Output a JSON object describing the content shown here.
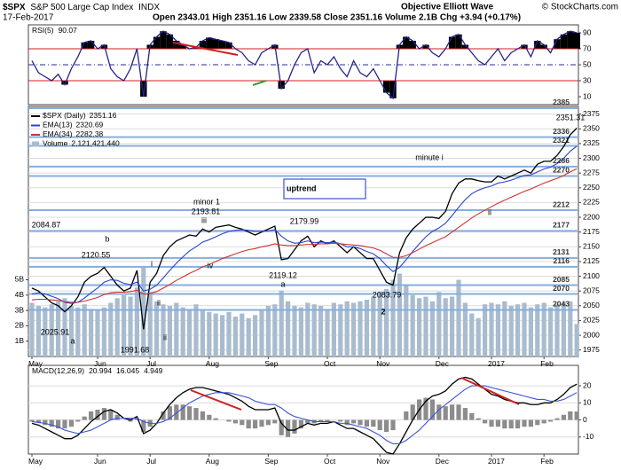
{
  "header": {
    "symbol": "$SPX",
    "name": "S&P 500 Large Cap Index",
    "exchange": "INDX",
    "date": "17-Feb-2017",
    "stats": "Open 2343.01  High 2351.16  Low 2339.58  Close 2351.16  Volume 2.1B  Chg +3.94 (+0.17%)",
    "brand": "Objective Elliott Wave",
    "source": "© StockCharts.com"
  },
  "chart_data": [
    {
      "type": "line",
      "title": "RSI(5)",
      "series": [
        {
          "color": "#23238c",
          "values": [
            55,
            40,
            35,
            30,
            38,
            25,
            45,
            60,
            78,
            80,
            70,
            75,
            45,
            35,
            30,
            45,
            70,
            10,
            75,
            85,
            92,
            88,
            80,
            75,
            70,
            72,
            80,
            84,
            82,
            80,
            78,
            70,
            65,
            55,
            50,
            65,
            70,
            75,
            20,
            30,
            50,
            65,
            70,
            40,
            55,
            50,
            60,
            45,
            35,
            55,
            40,
            35,
            45,
            30,
            15,
            8,
            75,
            85,
            80,
            70,
            75,
            65,
            60,
            70,
            85,
            88,
            75,
            65,
            55,
            50,
            60,
            70,
            55,
            65,
            70,
            75,
            60,
            80,
            75,
            65,
            82,
            88,
            92,
            90.07
          ]
        }
      ],
      "ylim": [
        0,
        100
      ],
      "yticks": [
        10,
        30,
        50,
        70,
        90
      ],
      "thresholds": [
        30,
        70
      ],
      "midline": 50,
      "fill_color": "#000000",
      "threshold_color": "#d02020",
      "grid": false
    },
    {
      "type": "line",
      "categories": [
        "May",
        null,
        null,
        null,
        null,
        null,
        null,
        null,
        null,
        null,
        "Jun",
        null,
        null,
        null,
        null,
        null,
        null,
        null,
        "Jul",
        null,
        null,
        null,
        null,
        null,
        null,
        null,
        null,
        "Aug",
        null,
        null,
        null,
        null,
        null,
        null,
        null,
        null,
        "Sep",
        null,
        null,
        null,
        null,
        null,
        null,
        null,
        null,
        "Oct",
        null,
        null,
        null,
        null,
        null,
        null,
        null,
        "Nov",
        null,
        null,
        null,
        null,
        null,
        null,
        null,
        null,
        "Dec",
        null,
        null,
        null,
        null,
        null,
        null,
        null,
        "2017",
        null,
        null,
        null,
        null,
        null,
        null,
        null,
        "Feb",
        null,
        null,
        null,
        null,
        null
      ],
      "series": [
        {
          "name": "$SPX (Daily)",
          "color": "#000000",
          "values": [
            2080,
            2075,
            2065,
            2055,
            2050,
            2040,
            2050,
            2065,
            2090,
            2100,
            2105,
            2115,
            2100,
            2085,
            2075,
            2080,
            2110,
            2010,
            2090,
            2105,
            2135,
            2150,
            2160,
            2165,
            2170,
            2168,
            2180,
            2175,
            2183,
            2185,
            2187,
            2183,
            2180,
            2175,
            2170,
            2175,
            2180,
            2185,
            2128,
            2130,
            2145,
            2160,
            2168,
            2150,
            2160,
            2155,
            2160,
            2150,
            2140,
            2150,
            2140,
            2130,
            2130,
            2110,
            2090,
            2085,
            2140,
            2165,
            2180,
            2190,
            2200,
            2200,
            2198,
            2210,
            2240,
            2258,
            2265,
            2265,
            2262,
            2260,
            2260,
            2270,
            2265,
            2270,
            2275,
            2280,
            2275,
            2290,
            2295,
            2295,
            2305,
            2320,
            2340,
            2351.16
          ]
        },
        {
          "name": "EMA(13)",
          "color": "#2a44c8",
          "values": [
            2070,
            2072,
            2070,
            2066,
            2062,
            2056,
            2054,
            2056,
            2063,
            2072,
            2080,
            2090,
            2094,
            2093,
            2088,
            2086,
            2090,
            2075,
            2078,
            2085,
            2097,
            2110,
            2122,
            2133,
            2143,
            2150,
            2158,
            2162,
            2167,
            2172,
            2176,
            2178,
            2179,
            2178,
            2176,
            2176,
            2177,
            2179,
            2168,
            2160,
            2156,
            2157,
            2160,
            2157,
            2158,
            2157,
            2158,
            2155,
            2150,
            2150,
            2147,
            2142,
            2138,
            2130,
            2118,
            2108,
            2115,
            2128,
            2142,
            2155,
            2167,
            2176,
            2182,
            2190,
            2203,
            2217,
            2230,
            2240,
            2246,
            2250,
            2253,
            2258,
            2260,
            2263,
            2267,
            2271,
            2272,
            2277,
            2282,
            2285,
            2291,
            2300,
            2312,
            2320.69
          ]
        },
        {
          "name": "EMA(34)",
          "color": "#cc3333",
          "values": [
            2060,
            2061,
            2061,
            2060,
            2059,
            2057,
            2056,
            2056,
            2058,
            2061,
            2064,
            2069,
            2072,
            2073,
            2073,
            2074,
            2076,
            2070,
            2071,
            2074,
            2080,
            2086,
            2093,
            2099,
            2105,
            2110,
            2116,
            2120,
            2125,
            2130,
            2134,
            2138,
            2142,
            2145,
            2147,
            2150,
            2152,
            2155,
            2153,
            2152,
            2152,
            2153,
            2154,
            2154,
            2155,
            2155,
            2156,
            2155,
            2154,
            2153,
            2152,
            2150,
            2148,
            2144,
            2138,
            2132,
            2132,
            2135,
            2140,
            2146,
            2152,
            2157,
            2162,
            2167,
            2175,
            2183,
            2191,
            2199,
            2206,
            2212,
            2218,
            2224,
            2229,
            2234,
            2239,
            2244,
            2248,
            2253,
            2258,
            2262,
            2266,
            2271,
            2277,
            2282.38
          ]
        },
        {
          "name": "Volume",
          "type": "bar",
          "axis": "y2",
          "color": "#a9bccf",
          "values": [
            3.5,
            3.3,
            3.2,
            3.4,
            3.6,
            3.8,
            3.3,
            3.2,
            3.4,
            3.1,
            3.0,
            3.2,
            3.5,
            3.8,
            4.0,
            3.9,
            4.5,
            5.8,
            4.2,
            3.6,
            3.4,
            3.3,
            3.5,
            3.2,
            3.1,
            3.4,
            3.0,
            2.9,
            2.8,
            2.7,
            2.9,
            2.6,
            2.8,
            2.5,
            2.7,
            3.0,
            3.3,
            3.4,
            4.3,
            3.6,
            3.3,
            3.2,
            3.5,
            3.4,
            3.3,
            3.1,
            3.5,
            3.4,
            3.6,
            3.5,
            3.6,
            3.7,
            3.9,
            4.2,
            4.4,
            5.0,
            5.4,
            4.6,
            4.0,
            3.8,
            3.9,
            3.6,
            4.2,
            3.8,
            3.9,
            5.0,
            3.5,
            2.8,
            2.5,
            3.4,
            3.5,
            3.4,
            3.6,
            3.3,
            3.4,
            3.5,
            3.2,
            3.4,
            3.5,
            3.2,
            3.4,
            3.5,
            3.6,
            2.12142144
          ],
          "value_labels": [
            null,
            null,
            null,
            null,
            null,
            null,
            null,
            null,
            null,
            null,
            null,
            null,
            null,
            null,
            null,
            null,
            null,
            null,
            null,
            null,
            null,
            null,
            null,
            null,
            null,
            null,
            null,
            null,
            null,
            null,
            null,
            null,
            null,
            null,
            null,
            null,
            null,
            null,
            null,
            null,
            null,
            null,
            null,
            null,
            null,
            null,
            null,
            null,
            null,
            null,
            null,
            null,
            null,
            null,
            null,
            null,
            null,
            null,
            null,
            null,
            null,
            null,
            null,
            null,
            null,
            null,
            null,
            null,
            null,
            null,
            null,
            null,
            null,
            null,
            null,
            null,
            null,
            null,
            null,
            null,
            null,
            null,
            null,
            "2,121,421,440"
          ]
        }
      ],
      "ylim": [
        1964,
        2388
      ],
      "yticks": [
        1975,
        2000,
        2025,
        2050,
        2075,
        2100,
        2125,
        2150,
        2175,
        2200,
        2225,
        2250,
        2275,
        2300,
        2325,
        2350,
        2375
      ],
      "y2lim": [
        0,
        16.3
      ],
      "y2ticks": [
        {
          "value": 1,
          "label": "1B"
        },
        {
          "value": 2,
          "label": "2B"
        },
        {
          "value": 3,
          "label": "3B"
        },
        {
          "value": 4,
          "label": "4B"
        },
        {
          "value": 5,
          "label": "5B"
        }
      ],
      "levels": [
        2385,
        2336,
        2321,
        2286,
        2270,
        2212,
        2177,
        2131,
        2116,
        2085,
        2070,
        2043
      ],
      "level_color": "#86aede",
      "grid": true,
      "legend": "top-left",
      "annotations": [
        "2084.87",
        "b",
        "2120.55",
        "2025.91",
        "a",
        "i",
        "ii",
        "1991.68",
        "ii",
        "minor 1",
        "iii",
        "2193.81",
        "iv",
        "b",
        "2179.99",
        "2119.12",
        "a",
        "2083.79",
        "2",
        "minute i",
        "ii",
        "2351.31",
        "uptrend"
      ]
    },
    {
      "type": "line",
      "title": "MACD(12,26,9)",
      "categories": [
        "May",
        null,
        null,
        null,
        null,
        null,
        null,
        null,
        null,
        null,
        "Jun",
        null,
        null,
        null,
        null,
        null,
        null,
        null,
        "Jul",
        null,
        null,
        null,
        null,
        null,
        null,
        null,
        null,
        "Aug",
        null,
        null,
        null,
        null,
        null,
        null,
        null,
        null,
        "Sep",
        null,
        null,
        null,
        null,
        null,
        null,
        null,
        null,
        "Oct",
        null,
        null,
        null,
        null,
        null,
        null,
        null,
        "Nov",
        null,
        null,
        null,
        null,
        null,
        null,
        null,
        null,
        "Dec",
        null,
        null,
        null,
        null,
        null,
        null,
        null,
        "2017",
        null,
        null,
        null,
        null,
        null,
        null,
        null,
        "Feb",
        null,
        null,
        null,
        null,
        null
      ],
      "series": [
        {
          "color": "#000000",
          "values": [
            -2,
            -3,
            -5,
            -7,
            -9,
            -11,
            -11,
            -9,
            -5,
            -1,
            2,
            5,
            6,
            4,
            1,
            0,
            2,
            -8,
            -6,
            -2,
            4,
            9,
            13,
            16,
            18,
            19,
            19,
            18,
            17,
            16,
            15,
            13,
            11,
            8,
            6,
            6,
            6,
            7,
            -2,
            -6,
            -6,
            -4,
            -2,
            -3,
            -2,
            -2,
            -1,
            -3,
            -5,
            -5,
            -7,
            -9,
            -11,
            -15,
            -19,
            -20,
            -14,
            -7,
            0,
            6,
            11,
            14,
            15,
            17,
            21,
            24,
            25,
            24,
            21,
            18,
            15,
            14,
            12,
            11,
            10,
            10,
            9,
            9,
            10,
            10,
            12,
            15,
            19,
            20.994
          ]
        },
        {
          "color": "#3a55d6",
          "values": [
            -1,
            -1.5,
            -2,
            -3,
            -4,
            -6,
            -7,
            -8,
            -7,
            -6,
            -4,
            -2,
            0,
            1,
            1,
            1,
            1,
            -1,
            -2,
            -2,
            -1,
            1,
            4,
            7,
            10,
            12,
            14,
            15,
            16,
            16,
            16,
            15,
            14,
            13,
            11,
            10,
            9,
            9,
            7,
            4,
            2,
            1,
            0,
            -1,
            -1,
            -1,
            -1,
            -2,
            -2,
            -3,
            -4,
            -5,
            -7,
            -9,
            -12,
            -14,
            -14,
            -12,
            -9,
            -6,
            -2,
            2,
            6,
            9,
            12,
            15,
            18,
            20,
            20,
            20,
            19,
            18,
            17,
            16,
            15,
            14,
            13,
            12,
            12,
            11,
            11,
            12,
            14,
            16.045
          ]
        },
        {
          "type": "bar",
          "color": "#8c8c8c",
          "values": [
            -1,
            -1.5,
            -3,
            -4,
            -5,
            -5,
            -4,
            -1,
            2,
            5,
            6,
            7,
            6,
            3,
            0,
            -1,
            1,
            -7,
            -4,
            0,
            5,
            8,
            9,
            9,
            8,
            7,
            5,
            3,
            1,
            0,
            -1,
            -2,
            -3,
            -5,
            -5,
            -4,
            -3,
            -2,
            -9,
            -10,
            -8,
            -5,
            -2,
            -2,
            -1,
            -1,
            0,
            -1,
            -3,
            -2,
            -3,
            -4,
            -4,
            -6,
            -7,
            -6,
            0,
            5,
            9,
            12,
            13,
            12,
            9,
            8,
            9,
            9,
            7,
            4,
            1,
            -2,
            -4,
            -4,
            -5,
            -5,
            -5,
            -4,
            -4,
            -3,
            -2,
            -1,
            1,
            3,
            5,
            4.949
          ]
        }
      ],
      "ylim": [
        -20,
        32
      ],
      "yticks": [
        -10,
        0,
        10,
        20
      ],
      "grid": true
    }
  ]
}
